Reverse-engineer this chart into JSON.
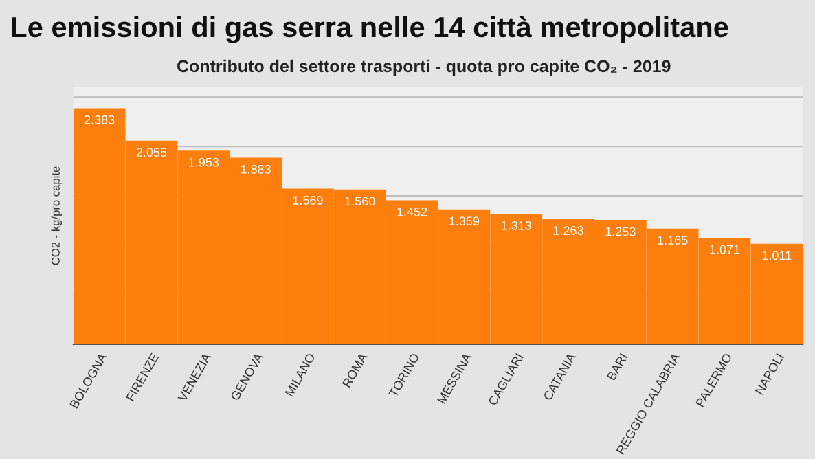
{
  "chart_data": {
    "type": "bar",
    "title": "Le emissioni di gas serra nelle 14 città metropolitane",
    "subtitle": "Contributo del settore trasporti - quota pro capite CO₂ - 2019",
    "ylabel": "CO2 - kg/pro capite",
    "categories": [
      "BOLOGNA",
      "FIRENZE",
      "VENEZIA",
      "GENOVA",
      "MILANO",
      "ROMA",
      "TORINO",
      "MESSINA",
      "CAGLIARI",
      "CATANIA",
      "BARI",
      "REGGIO CALABRIA",
      "PALERMO",
      "NAPOLI"
    ],
    "values": [
      2383,
      2055,
      1953,
      1883,
      1569,
      1560,
      1452,
      1359,
      1313,
      1263,
      1253,
      1165,
      1071,
      1011
    ],
    "value_labels": [
      "2.383",
      "2.055",
      "1.953",
      "1.883",
      "1.569",
      "1.560",
      "1.452",
      "1.359",
      "1.313",
      "1.263",
      "1.253",
      "1.165",
      "1.071",
      "1.011"
    ],
    "color": "#ff7f0e",
    "ylim": [
      0,
      2600
    ],
    "yticks": [
      {
        "value": 0,
        "label": null
      },
      {
        "value": 500,
        "label": null
      },
      {
        "value": 1000,
        "label": null
      },
      {
        "value": 1500,
        "label": null
      },
      {
        "value": 2000,
        "label": null
      },
      {
        "value": 2500,
        "label": null
      }
    ],
    "grid": "y",
    "tick_labels": "x"
  }
}
